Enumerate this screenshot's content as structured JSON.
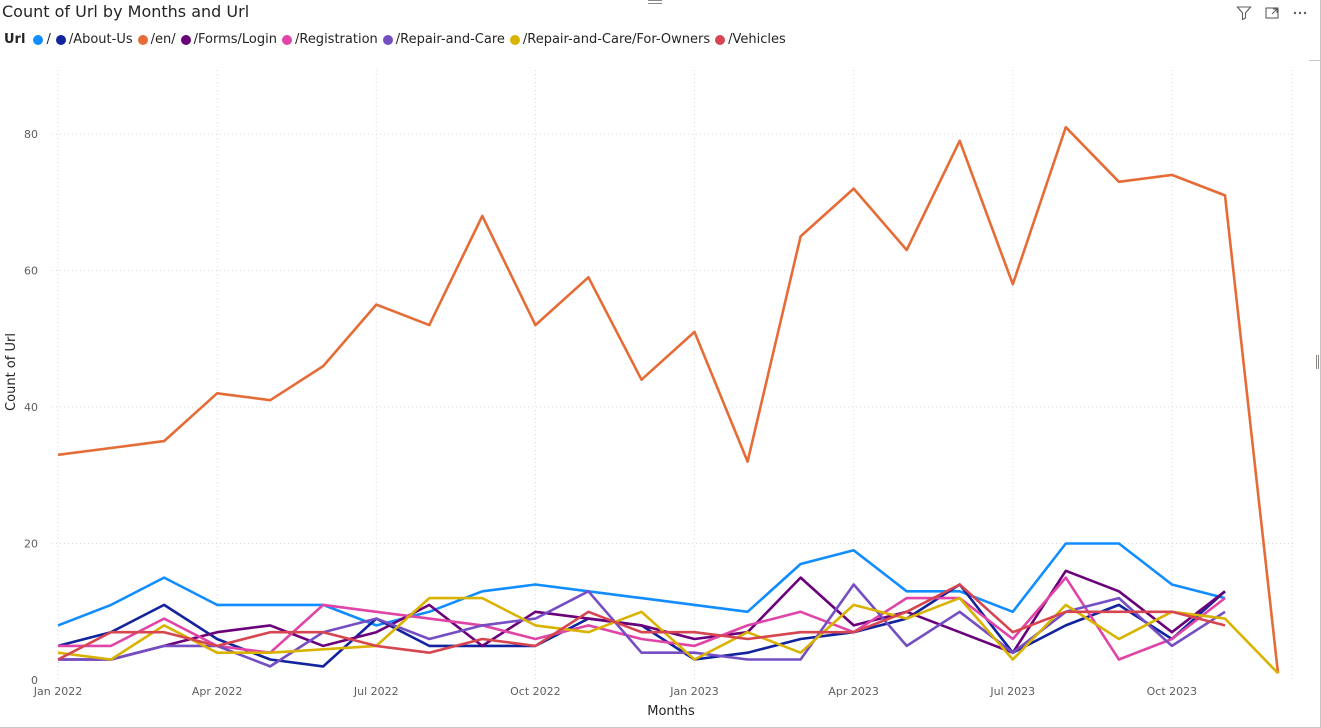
{
  "title": "Count of Url by Months and Url",
  "toolbar": {
    "filter_icon": "filter-icon",
    "focus_icon": "focus-mode-icon",
    "more_icon": "more-options-icon"
  },
  "legend": {
    "title": "Url"
  },
  "chart_data": {
    "type": "line",
    "title": "Count of Url by Months and Url",
    "xlabel": "Months",
    "ylabel": "Count of Url",
    "ylim": [
      0,
      85
    ],
    "yticks": [
      "0",
      "20",
      "40",
      "60",
      "80"
    ],
    "xticks": [
      "Jan 2022",
      "Apr 2022",
      "Jul 2022",
      "Oct 2022",
      "Jan 2023",
      "Apr 2023",
      "Jul 2023",
      "Oct 2023"
    ],
    "grid": "dotted",
    "legend_position": "top-left",
    "x": [
      "2022-01",
      "2022-02",
      "2022-03",
      "2022-04",
      "2022-05",
      "2022-06",
      "2022-07",
      "2022-08",
      "2022-09",
      "2022-10",
      "2022-11",
      "2022-12",
      "2023-01",
      "2023-02",
      "2023-03",
      "2023-04",
      "2023-05",
      "2023-06",
      "2023-07",
      "2023-08",
      "2023-09",
      "2023-10",
      "2023-11",
      "2023-12"
    ],
    "series": [
      {
        "name": "/",
        "color": "#118DFF",
        "values": [
          8,
          11,
          15,
          11,
          11,
          11,
          8,
          10,
          13,
          14,
          13,
          12,
          11,
          10,
          17,
          19,
          13,
          13,
          10,
          20,
          20,
          14,
          12,
          null
        ]
      },
      {
        "name": "/About-Us",
        "color": "#12239E",
        "values": [
          5,
          7,
          11,
          6,
          3,
          2,
          9,
          5,
          5,
          5,
          9,
          8,
          3,
          4,
          6,
          7,
          9,
          14,
          4,
          8,
          11,
          6,
          13,
          null
        ]
      },
      {
        "name": "/en/",
        "color": "#E66C37",
        "values": [
          33,
          34,
          35,
          42,
          41,
          46,
          55,
          52,
          68,
          52,
          59,
          44,
          51,
          32,
          65,
          72,
          63,
          79,
          58,
          81,
          73,
          74,
          71,
          1
        ]
      },
      {
        "name": "/Forms/Login",
        "color": "#6B007B",
        "values": [
          3,
          3,
          5,
          7,
          8,
          5,
          7,
          11,
          5,
          10,
          9,
          8,
          6,
          7,
          15,
          8,
          10,
          7,
          4,
          16,
          13,
          7,
          13,
          null
        ]
      },
      {
        "name": "/Registration",
        "color": "#E044A7",
        "values": [
          5,
          5,
          9,
          5,
          4,
          11,
          10,
          9,
          8,
          6,
          8,
          6,
          5,
          8,
          10,
          7,
          12,
          12,
          6,
          15,
          3,
          6,
          12,
          null
        ]
      },
      {
        "name": "/Repair-and-Care",
        "color": "#744EC2",
        "values": [
          3,
          3,
          5,
          5,
          2,
          7,
          9,
          6,
          8,
          9,
          13,
          4,
          4,
          3,
          3,
          14,
          5,
          10,
          4,
          10,
          12,
          5,
          10,
          null
        ]
      },
      {
        "name": "/Repair-and-Care/For-Owners",
        "color": "#D9B300",
        "values": [
          4,
          3,
          8,
          4,
          4,
          4.5,
          5,
          12,
          12,
          8,
          7,
          10,
          3,
          7,
          4,
          11,
          9,
          12,
          3,
          11,
          6,
          10,
          9,
          1
        ]
      },
      {
        "name": "/Vehicles",
        "color": "#D64550",
        "values": [
          3,
          7,
          7,
          5,
          7,
          7,
          5,
          4,
          6,
          5,
          10,
          7,
          7,
          6,
          7,
          7,
          10,
          14,
          7,
          10,
          10,
          10,
          8,
          null
        ]
      }
    ]
  }
}
